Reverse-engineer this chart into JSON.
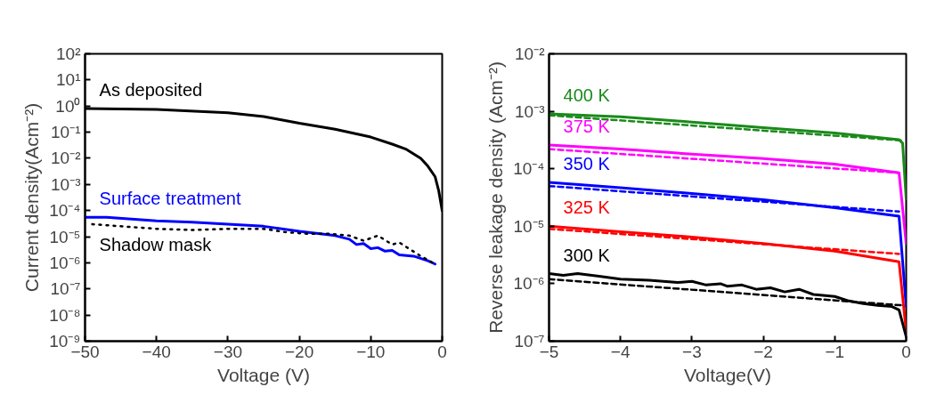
{
  "chart_data": [
    {
      "type": "line",
      "xlabel": "Voltage (V)",
      "ylabel": "Current density(Acm⁻²)",
      "log": "y",
      "grid": false,
      "legend": false,
      "xlim": [
        -50,
        0
      ],
      "xticks": [
        -50,
        -40,
        -30,
        -20,
        -10,
        0
      ],
      "ylim": [
        1e-09,
        100
      ],
      "yticks": [
        {
          "value": 1e-09,
          "label": "10⁻⁹"
        },
        {
          "value": 1e-08,
          "label": "10⁻⁸"
        },
        {
          "value": 1e-07,
          "label": "10⁻⁷"
        },
        {
          "value": 1e-06,
          "label": "10⁻⁶"
        },
        {
          "value": 1e-05,
          "label": "10⁻⁵"
        },
        {
          "value": 0.0001,
          "label": "10⁻⁴"
        },
        {
          "value": 0.001,
          "label": "10⁻³"
        },
        {
          "value": 0.01,
          "label": "10⁻²"
        },
        {
          "value": 0.1,
          "label": "10⁻¹"
        },
        {
          "value": 1,
          "label": "10⁰"
        },
        {
          "value": 10,
          "label": "10¹"
        },
        {
          "value": 100,
          "label": "10²"
        }
      ],
      "series": [
        {
          "name": "As deposited",
          "color": "#000000",
          "line_style": "solid",
          "x": [
            -50,
            -40,
            -30,
            -25,
            -20,
            -15,
            -10,
            -7,
            -5,
            -3,
            -2,
            -1,
            -0.5,
            0
          ],
          "values": [
            0.8,
            0.75,
            0.55,
            0.4,
            0.22,
            0.13,
            0.065,
            0.035,
            0.022,
            0.01,
            0.005,
            0.002,
            0.0006,
            0.0001
          ]
        },
        {
          "name": "Surface treatment",
          "color": "#0000ff",
          "line_style": "solid",
          "x": [
            -50,
            -47,
            -40,
            -35,
            -30,
            -25,
            -20,
            -15,
            -13,
            -12,
            -11,
            -10,
            -9,
            -8,
            -7,
            -6,
            -4,
            -2,
            -1
          ],
          "values": [
            5.5e-05,
            5.5e-05,
            4e-05,
            3.6e-05,
            3e-05,
            2.5e-05,
            1.6e-05,
            1.1e-05,
            8e-06,
            5e-06,
            5.5e-06,
            3.5e-06,
            3.8e-06,
            2.8e-06,
            3e-06,
            2e-06,
            1.8e-06,
            1.2e-06,
            9e-07
          ]
        },
        {
          "name": "Shadow mask",
          "color": "#000000",
          "line_style": "dotted",
          "x": [
            -49,
            -45,
            -40,
            -35,
            -30,
            -25,
            -22,
            -19,
            -16,
            -13,
            -11,
            -9,
            -7,
            -6,
            -5,
            -3,
            -1
          ],
          "values": [
            3e-05,
            2.5e-05,
            2e-05,
            1.8e-05,
            2e-05,
            2e-05,
            1.5e-05,
            1.3e-05,
            1.3e-05,
            1.1e-05,
            7e-06,
            1.1e-05,
            5e-06,
            6e-06,
            4e-06,
            1.8e-06,
            9e-07
          ]
        }
      ]
    },
    {
      "type": "line",
      "xlabel": "Voltage(V)",
      "ylabel": "Reverse leakage density (Acm⁻²)",
      "log": "y",
      "grid": false,
      "legend": false,
      "xlim": [
        -5,
        0
      ],
      "xticks": [
        -5,
        -4,
        -3,
        -2,
        -1,
        0
      ],
      "ylim": [
        1e-07,
        0.01
      ],
      "yticks": [
        {
          "value": 1e-07,
          "label": "10⁻⁷"
        },
        {
          "value": 1e-06,
          "label": "10⁻⁶"
        },
        {
          "value": 1e-05,
          "label": "10⁻⁵"
        },
        {
          "value": 0.0001,
          "label": "10⁻⁴"
        },
        {
          "value": 0.001,
          "label": "10⁻³"
        },
        {
          "value": 0.01,
          "label": "10⁻²"
        }
      ],
      "series": [
        {
          "name": "400 K",
          "color": "#1a8a1a",
          "line_style": "solid",
          "x": [
            -5,
            -4,
            -3,
            -2,
            -1,
            -0.1,
            -0.05,
            0
          ],
          "values": [
            0.0009,
            0.0008,
            0.00065,
            0.00052,
            0.00042,
            0.00032,
            0.00028,
            3e-05
          ]
        },
        {
          "color": "#1a8a1a",
          "line_style": "dashed",
          "x": [
            -5,
            -0.05
          ],
          "values": [
            0.00085,
            0.00031
          ]
        },
        {
          "name": "375 K",
          "color": "#ff00ff",
          "line_style": "solid",
          "x": [
            -5,
            -4,
            -3,
            -2,
            -1,
            -0.1,
            0
          ],
          "values": [
            0.00026,
            0.00022,
            0.00018,
            0.00015,
            0.00012,
            8.5e-05,
            5e-06
          ]
        },
        {
          "color": "#ff00ff",
          "line_style": "dashed",
          "x": [
            -5,
            -0.1
          ],
          "values": [
            0.00022,
            8.5e-05
          ]
        },
        {
          "name": "350 K",
          "color": "#0000ff",
          "line_style": "solid",
          "x": [
            -5,
            -4,
            -3,
            -2,
            -1,
            -0.1,
            0
          ],
          "values": [
            5.8e-05,
            4.7e-05,
            3.7e-05,
            2.9e-05,
            2.1e-05,
            1.5e-05,
            4e-07
          ]
        },
        {
          "color": "#0000ff",
          "line_style": "dashed",
          "x": [
            -5,
            -0.1
          ],
          "values": [
            5e-05,
            1.8e-05
          ]
        },
        {
          "name": "325 K",
          "color": "#ff0000",
          "line_style": "solid",
          "x": [
            -5,
            -4,
            -3,
            -2,
            -1,
            -0.1,
            0
          ],
          "values": [
            1e-05,
            8e-06,
            6.5e-06,
            5e-06,
            3.7e-06,
            2.4e-06,
            1.5e-07
          ]
        },
        {
          "color": "#ff0000",
          "line_style": "dashed",
          "x": [
            -5,
            -0.1
          ],
          "values": [
            9e-06,
            3.3e-06
          ]
        },
        {
          "name": "300 K",
          "color": "#000000",
          "line_style": "solid",
          "x": [
            -5,
            -4.8,
            -4.6,
            -4.3,
            -4,
            -3.6,
            -3.2,
            -3,
            -2.8,
            -2.6,
            -2.5,
            -2.3,
            -2.1,
            -1.9,
            -1.7,
            -1.5,
            -1.3,
            -1,
            -0.8,
            -0.6,
            -0.4,
            -0.2,
            -0.1,
            0
          ],
          "values": [
            1.5e-06,
            1.4e-06,
            1.5e-06,
            1.35e-06,
            1.2e-06,
            1.15e-06,
            1.05e-06,
            1.1e-06,
            9.5e-07,
            1e-06,
            9e-07,
            9.5e-07,
            8e-07,
            8.5e-07,
            7.2e-07,
            8e-07,
            6.5e-07,
            6e-07,
            5e-07,
            4.5e-07,
            4.2e-07,
            4e-07,
            3.5e-07,
            1.2e-07
          ]
        },
        {
          "color": "#000000",
          "line_style": "dashed",
          "x": [
            -5,
            -0.05
          ],
          "values": [
            1.2e-06,
            4.2e-07
          ]
        }
      ]
    }
  ]
}
